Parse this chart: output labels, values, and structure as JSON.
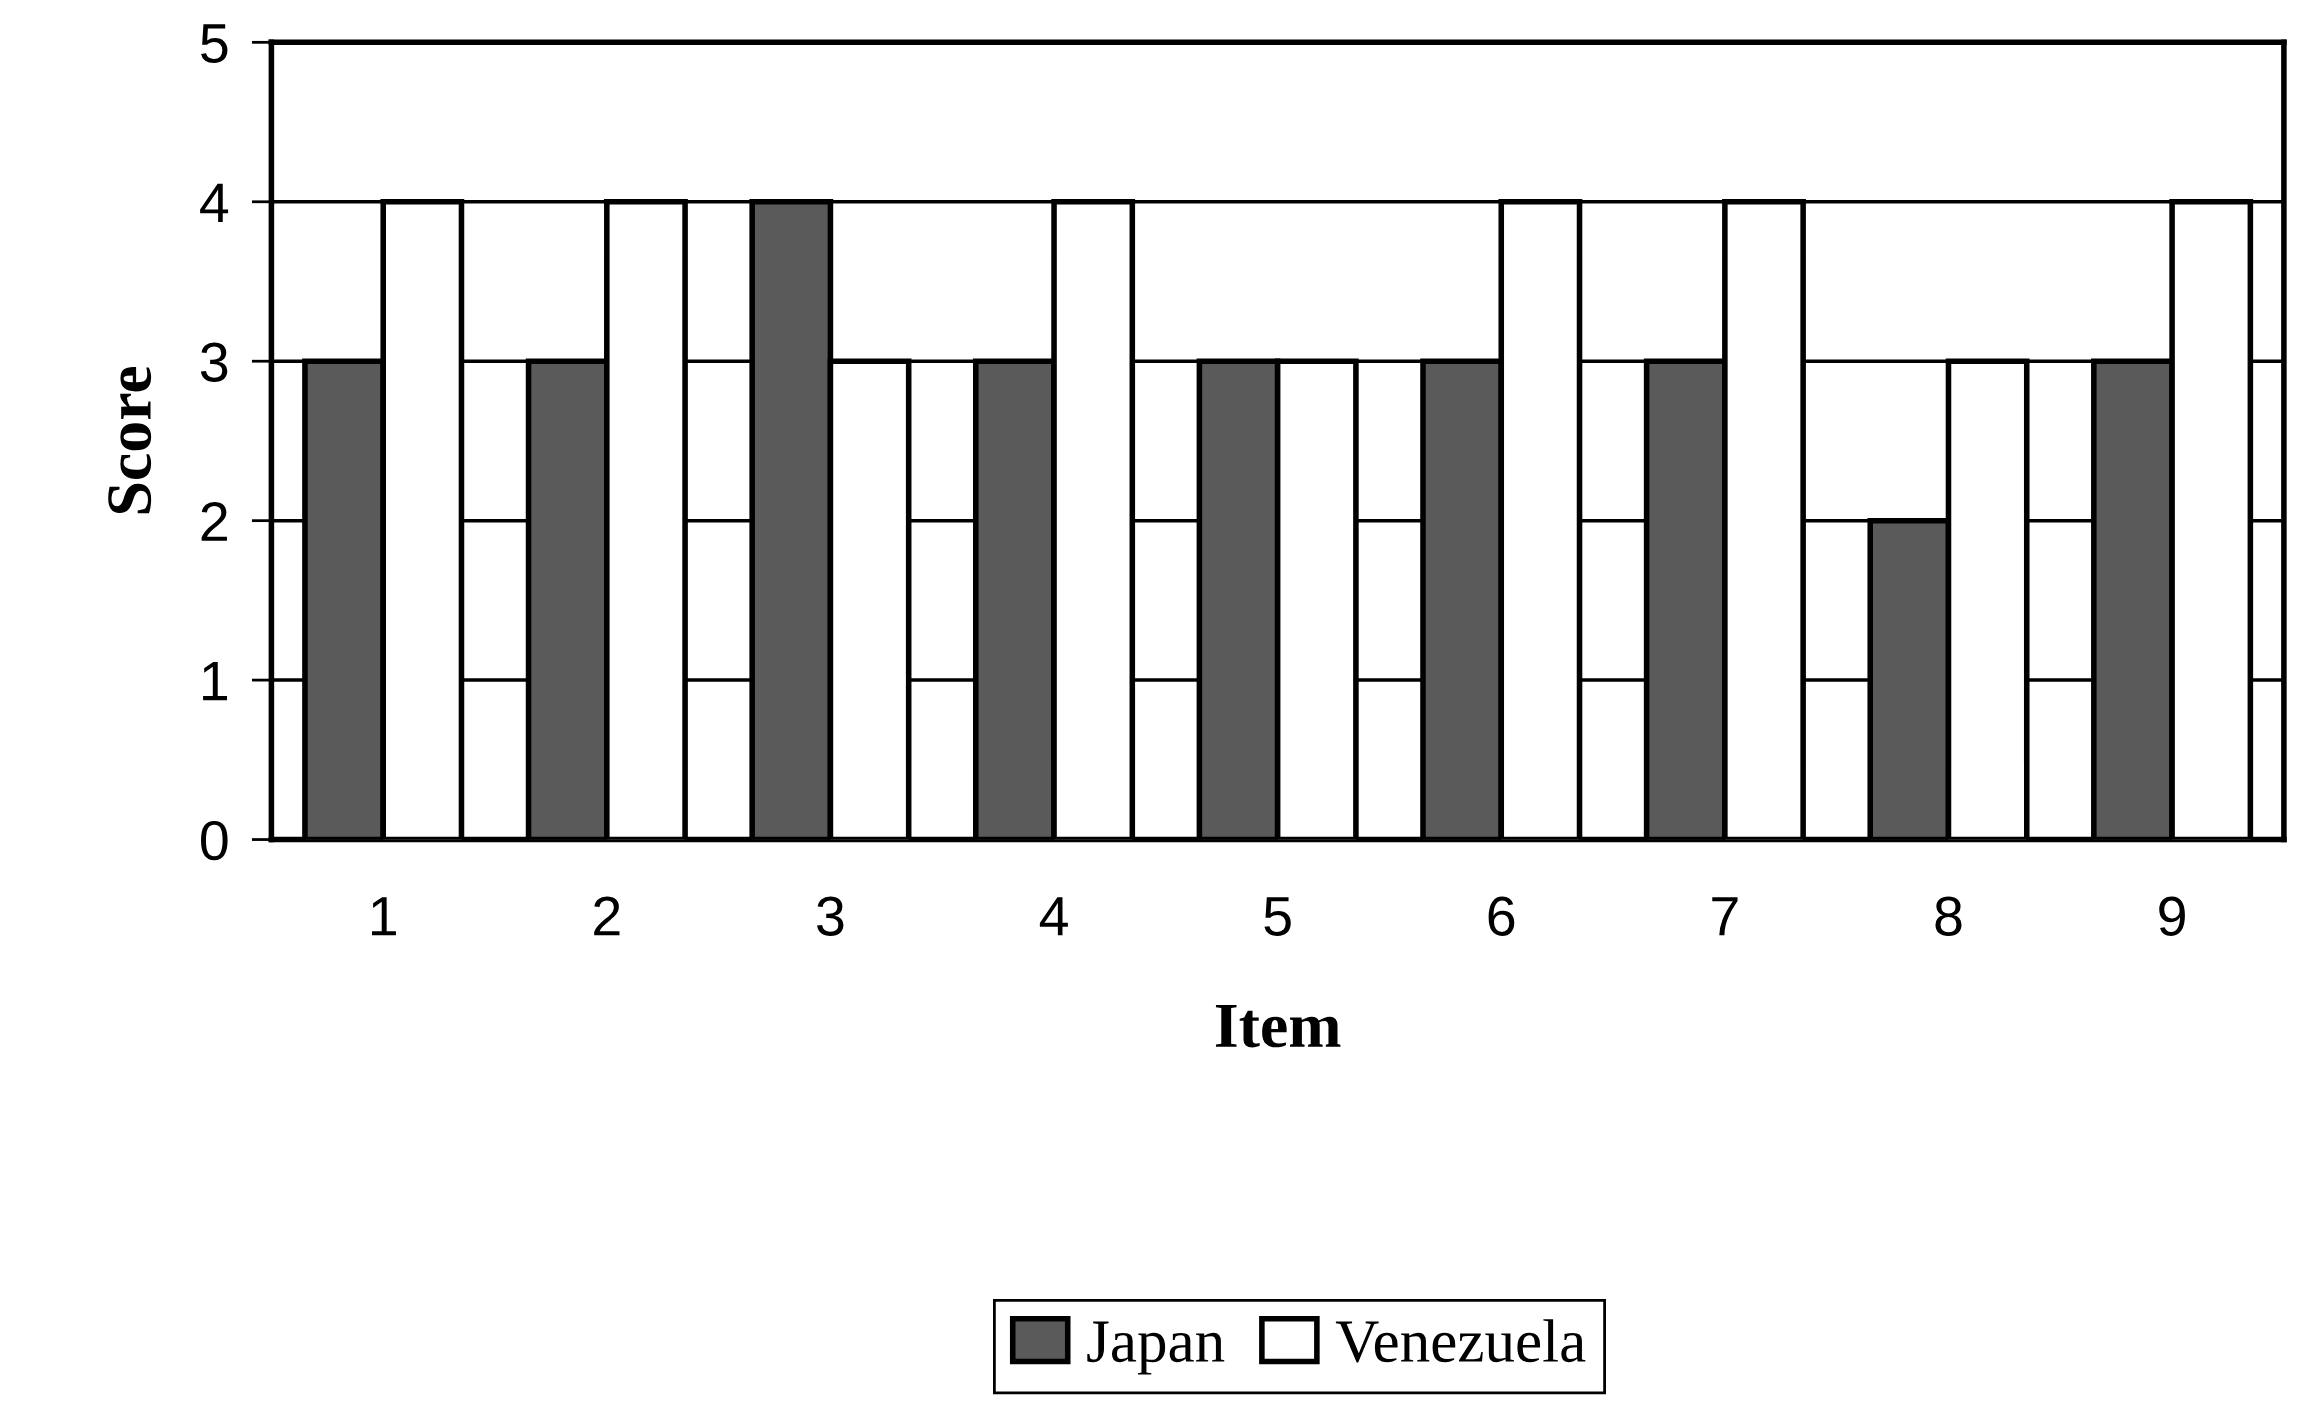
{
  "chart_data": {
    "type": "bar",
    "xlabel": "Item",
    "ylabel": "Score",
    "categories": [
      "1",
      "2",
      "3",
      "4",
      "5",
      "6",
      "7",
      "8",
      "9"
    ],
    "series": [
      {
        "name": "Japan",
        "color": "#5a5a5a",
        "values": [
          3,
          3,
          4,
          3,
          3,
          3,
          3,
          2,
          3
        ]
      },
      {
        "name": "Venezuela",
        "color": "#ffffff",
        "values": [
          4,
          4,
          3,
          4,
          3,
          4,
          4,
          3,
          4
        ]
      }
    ],
    "ylim": [
      0,
      5
    ],
    "yticks": [
      0,
      1,
      2,
      3,
      4,
      5
    ],
    "grid": "y",
    "legend": "bottom"
  }
}
